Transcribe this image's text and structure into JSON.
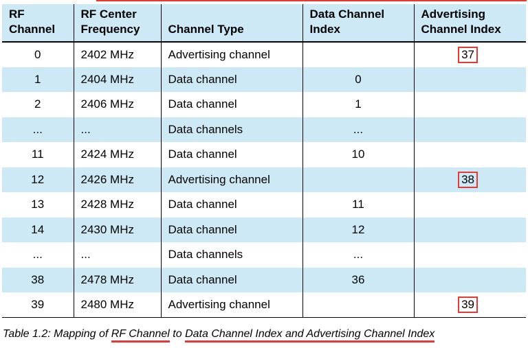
{
  "headers": [
    "RF Channel",
    "RF Center Frequency",
    "Channel Type",
    "Data Channel Index",
    "Advertising Channel Index"
  ],
  "rows": [
    {
      "rf": "0",
      "freq": "2402 MHz",
      "type": "Advertising channel",
      "data": "",
      "adv": "37"
    },
    {
      "rf": "1",
      "freq": "2404 MHz",
      "type": "Data channel",
      "data": "0",
      "adv": ""
    },
    {
      "rf": "2",
      "freq": "2406 MHz",
      "type": "Data channel",
      "data": "1",
      "adv": ""
    },
    {
      "rf": "...",
      "freq": "...",
      "type": "Data channels",
      "data": "...",
      "adv": ""
    },
    {
      "rf": "11",
      "freq": "2424 MHz",
      "type": "Data channel",
      "data": "10",
      "adv": ""
    },
    {
      "rf": "12",
      "freq": "2426 MHz",
      "type": "Advertising channel",
      "data": "",
      "adv": "38"
    },
    {
      "rf": "13",
      "freq": "2428 MHz",
      "type": "Data channel",
      "data": "11",
      "adv": ""
    },
    {
      "rf": "14",
      "freq": "2430 MHz",
      "type": "Data channel",
      "data": "12",
      "adv": ""
    },
    {
      "rf": "...",
      "freq": "...",
      "type": "Data channels",
      "data": "...",
      "adv": ""
    },
    {
      "rf": "38",
      "freq": "2478 MHz",
      "type": "Data channel",
      "data": "36",
      "adv": ""
    },
    {
      "rf": "39",
      "freq": "2480 MHz",
      "type": "Advertising channel",
      "data": "",
      "adv": "39"
    }
  ],
  "caption": {
    "prefix": "Table 1.2:  Mapping of ",
    "term1": "RF Channel",
    "middle": " to ",
    "term2": "Data Channel Index and Advertising Channel Index"
  },
  "colors": {
    "header_bg": "#cce9f5",
    "alt_row_bg": "#cce9f5",
    "highlight": "#e53935"
  }
}
